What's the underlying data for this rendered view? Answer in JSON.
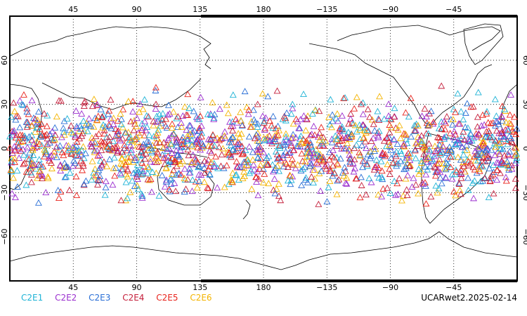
{
  "map": {
    "projection": "equirectangular",
    "lon_range": [
      0,
      360
    ],
    "lat_range": [
      -90,
      90
    ],
    "top_lon_labels": [
      "45",
      "90",
      "135",
      "180",
      "−135",
      "−90",
      "−45"
    ],
    "bottom_lon_labels": [
      "45",
      "90",
      "135",
      "180",
      "−135",
      "−90",
      "−45"
    ],
    "left_lat_labels": [
      "60",
      "30",
      "0",
      "−30",
      "−60"
    ],
    "right_lat_labels": [
      "60",
      "30",
      "0",
      "−30",
      "−60"
    ],
    "grid": "dotted",
    "marker": "open-triangle",
    "data_band_lat": [
      -45,
      45
    ]
  },
  "legend": {
    "items": [
      {
        "label": "C2E1",
        "color": "#1fb3d6"
      },
      {
        "label": "C2E2",
        "color": "#9b2fcf"
      },
      {
        "label": "C2E3",
        "color": "#2a6fd6"
      },
      {
        "label": "C2E4",
        "color": "#c41e3a"
      },
      {
        "label": "C2E5",
        "color": "#e8231c"
      },
      {
        "label": "C2E6",
        "color": "#f4b400"
      }
    ]
  },
  "source_label": "UCARwet2.2025-02-14"
}
